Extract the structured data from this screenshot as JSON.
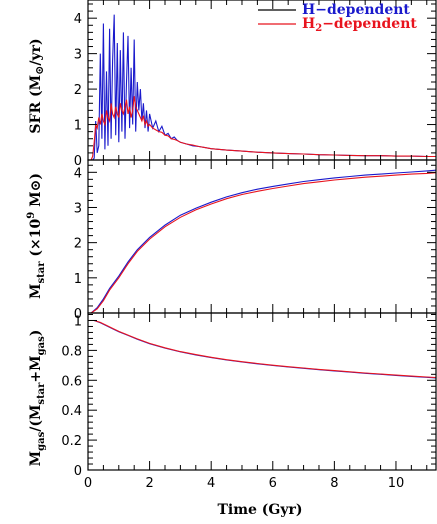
{
  "colors": {
    "h_dependent": "#1a1acc",
    "h2_dependent": "#e8141e"
  },
  "chart_data": [
    {
      "type": "line",
      "panel": "top",
      "ylabel_text": "SFR (M",
      "ylabel_sun": "⊙",
      "ylabel_unit": "/yr)",
      "xlim": [
        0,
        11.3
      ],
      "ylim": [
        0,
        4.4
      ],
      "yticks": [
        0,
        1,
        2,
        3,
        4
      ],
      "legend_position": "top-right",
      "series": [
        {
          "name": "H−dependent",
          "color": "#1a1acc",
          "x": [
            0.1,
            0.15,
            0.2,
            0.25,
            0.3,
            0.35,
            0.4,
            0.45,
            0.5,
            0.55,
            0.6,
            0.65,
            0.7,
            0.75,
            0.8,
            0.85,
            0.9,
            0.95,
            1.0,
            1.05,
            1.1,
            1.15,
            1.2,
            1.25,
            1.3,
            1.35,
            1.4,
            1.45,
            1.5,
            1.55,
            1.6,
            1.65,
            1.7,
            1.75,
            1.8,
            1.85,
            1.9,
            1.95,
            2.0,
            2.1,
            2.2,
            2.3,
            2.4,
            2.5,
            2.6,
            2.7,
            2.8,
            2.9,
            3.0,
            3.2,
            3.4,
            3.6,
            3.8,
            4.0,
            4.5,
            5.0,
            5.5,
            6.0,
            6.5,
            7.0,
            7.5,
            8.0,
            8.5,
            9.0,
            9.5,
            10.0,
            10.5,
            11.0,
            11.3
          ],
          "y": [
            0.0,
            0.0,
            0.05,
            1.1,
            0.2,
            0.4,
            3.0,
            0.6,
            3.85,
            0.3,
            2.5,
            0.4,
            3.7,
            0.6,
            2.8,
            4.1,
            0.7,
            3.3,
            0.5,
            3.1,
            0.8,
            3.6,
            0.6,
            2.2,
            3.5,
            0.9,
            2.6,
            1.0,
            3.4,
            0.8,
            2.2,
            1.4,
            2.0,
            1.1,
            1.6,
            0.9,
            1.4,
            0.8,
            1.3,
            0.9,
            1.1,
            0.8,
            0.95,
            0.7,
            0.75,
            0.6,
            0.65,
            0.55,
            0.5,
            0.45,
            0.4,
            0.38,
            0.35,
            0.32,
            0.28,
            0.25,
            0.22,
            0.2,
            0.18,
            0.17,
            0.15,
            0.14,
            0.13,
            0.12,
            0.12,
            0.11,
            0.11,
            0.1,
            0.1
          ]
        },
        {
          "name": "H2−dependent",
          "color": "#e8141e",
          "x": [
            0.1,
            0.15,
            0.2,
            0.25,
            0.3,
            0.35,
            0.4,
            0.45,
            0.5,
            0.55,
            0.6,
            0.65,
            0.7,
            0.75,
            0.8,
            0.85,
            0.9,
            0.95,
            1.0,
            1.05,
            1.1,
            1.15,
            1.2,
            1.25,
            1.3,
            1.35,
            1.4,
            1.45,
            1.5,
            1.55,
            1.6,
            1.65,
            1.7,
            1.75,
            1.8,
            1.85,
            1.9,
            1.95,
            2.0,
            2.1,
            2.2,
            2.3,
            2.4,
            2.5,
            2.6,
            2.7,
            2.8,
            2.9,
            3.0,
            3.2,
            3.4,
            3.6,
            3.8,
            4.0,
            4.5,
            5.0,
            5.5,
            6.0,
            6.5,
            7.0,
            7.5,
            8.0,
            8.5,
            9.0,
            9.5,
            10.0,
            10.5,
            11.0,
            11.3
          ],
          "y": [
            0.0,
            0.1,
            0.5,
            1.0,
            0.9,
            1.2,
            1.0,
            1.3,
            1.1,
            1.0,
            1.4,
            1.2,
            1.1,
            1.6,
            1.3,
            1.2,
            1.5,
            1.3,
            1.2,
            1.6,
            1.4,
            1.3,
            1.5,
            1.7,
            1.3,
            1.5,
            1.2,
            1.4,
            1.8,
            1.5,
            1.4,
            1.3,
            1.2,
            1.1,
            1.25,
            1.0,
            1.1,
            0.95,
            1.0,
            0.9,
            0.85,
            0.8,
            0.78,
            0.7,
            0.68,
            0.6,
            0.58,
            0.55,
            0.5,
            0.45,
            0.42,
            0.38,
            0.35,
            0.32,
            0.28,
            0.25,
            0.22,
            0.2,
            0.18,
            0.17,
            0.15,
            0.14,
            0.13,
            0.12,
            0.12,
            0.11,
            0.11,
            0.1,
            0.1
          ]
        }
      ]
    },
    {
      "type": "line",
      "panel": "middle",
      "ylabel_text": "M",
      "ylabel_sub": "star",
      "ylabel_unit": " (×10",
      "ylabel_exp": "9",
      "ylabel_sun": " M⊙)",
      "xlim": [
        0,
        11.3
      ],
      "ylim": [
        0,
        4.35
      ],
      "yticks": [
        0,
        1,
        2,
        3,
        4
      ],
      "series": [
        {
          "name": "H−dependent",
          "color": "#1a1acc",
          "x": [
            0.1,
            0.3,
            0.5,
            0.7,
            1.0,
            1.3,
            1.6,
            2.0,
            2.5,
            3.0,
            3.5,
            4.0,
            4.5,
            5.0,
            5.5,
            6.0,
            6.5,
            7.0,
            7.5,
            8.0,
            8.5,
            9.0,
            9.5,
            10.0,
            10.5,
            11.0,
            11.3
          ],
          "y": [
            0.0,
            0.15,
            0.4,
            0.7,
            1.05,
            1.45,
            1.8,
            2.15,
            2.5,
            2.78,
            2.98,
            3.15,
            3.3,
            3.42,
            3.52,
            3.6,
            3.67,
            3.74,
            3.79,
            3.84,
            3.88,
            3.92,
            3.95,
            3.98,
            4.01,
            4.04,
            4.06
          ]
        },
        {
          "name": "H2−dependent",
          "color": "#e8141e",
          "x": [
            0.1,
            0.3,
            0.5,
            0.7,
            1.0,
            1.3,
            1.6,
            2.0,
            2.5,
            3.0,
            3.5,
            4.0,
            4.5,
            5.0,
            5.5,
            6.0,
            6.5,
            7.0,
            7.5,
            8.0,
            8.5,
            9.0,
            9.5,
            10.0,
            10.5,
            11.0,
            11.3
          ],
          "y": [
            0.0,
            0.12,
            0.35,
            0.65,
            1.0,
            1.4,
            1.75,
            2.1,
            2.45,
            2.72,
            2.93,
            3.1,
            3.25,
            3.37,
            3.46,
            3.54,
            3.61,
            3.68,
            3.73,
            3.78,
            3.82,
            3.86,
            3.89,
            3.92,
            3.95,
            3.97,
            3.99
          ]
        }
      ]
    },
    {
      "type": "line",
      "panel": "bottom",
      "ylabel_text": "M",
      "ylabel_sub": "gas",
      "ylabel_mid": "/(M",
      "ylabel_sub2": "star",
      "ylabel_plus": "+M",
      "ylabel_sub3": "gas",
      "ylabel_close": ")",
      "xlim": [
        0,
        11.3
      ],
      "ylim": [
        0,
        1.05
      ],
      "yticks": [
        0,
        0.2,
        0.4,
        0.6,
        0.8,
        1
      ],
      "xticks": [
        0,
        2,
        4,
        6,
        8,
        10
      ],
      "xlabel": "Time (Gyr)",
      "series": [
        {
          "name": "H−dependent",
          "color": "#1a1acc",
          "x": [
            0.0,
            0.2,
            0.4,
            0.6,
            0.8,
            1.0,
            1.3,
            1.6,
            2.0,
            2.5,
            3.0,
            3.5,
            4.0,
            4.5,
            5.0,
            5.5,
            6.0,
            6.5,
            7.0,
            7.5,
            8.0,
            8.5,
            9.0,
            9.5,
            10.0,
            10.5,
            11.0,
            11.3
          ],
          "y": [
            1.0,
            1.0,
            0.985,
            0.965,
            0.945,
            0.925,
            0.9,
            0.875,
            0.845,
            0.815,
            0.79,
            0.77,
            0.752,
            0.736,
            0.722,
            0.71,
            0.699,
            0.689,
            0.68,
            0.671,
            0.663,
            0.655,
            0.647,
            0.64,
            0.633,
            0.626,
            0.62,
            0.616
          ]
        },
        {
          "name": "H2−dependent",
          "color": "#e8141e",
          "x": [
            0.0,
            0.2,
            0.4,
            0.6,
            0.8,
            1.0,
            1.3,
            1.6,
            2.0,
            2.5,
            3.0,
            3.5,
            4.0,
            4.5,
            5.0,
            5.5,
            6.0,
            6.5,
            7.0,
            7.5,
            8.0,
            8.5,
            9.0,
            9.5,
            10.0,
            10.5,
            11.0,
            11.3
          ],
          "y": [
            1.0,
            1.0,
            0.987,
            0.967,
            0.947,
            0.927,
            0.902,
            0.877,
            0.847,
            0.817,
            0.792,
            0.772,
            0.754,
            0.738,
            0.724,
            0.712,
            0.701,
            0.691,
            0.682,
            0.673,
            0.665,
            0.657,
            0.649,
            0.642,
            0.635,
            0.628,
            0.622,
            0.618
          ]
        }
      ]
    }
  ]
}
